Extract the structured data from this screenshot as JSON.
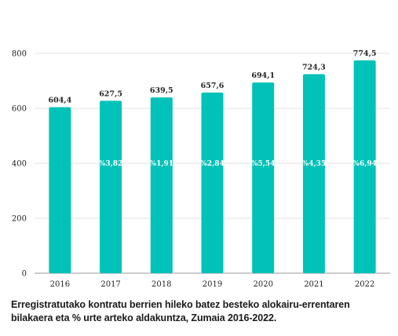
{
  "caption": "Erregistratutako kontratu berrien hileko batez besteko alokairu-errentaren bilakaera eta % urte arteko aldakuntza, Zumaia 2016-2022.",
  "colors": {
    "bar": "#00c2b8",
    "grid": "#e3e3e3",
    "axis": "#9a9a9a"
  },
  "chart_data": {
    "type": "bar",
    "title": "",
    "xlabel": "",
    "ylabel": "",
    "categories": [
      "2016",
      "2017",
      "2018",
      "2019",
      "2020",
      "2021",
      "2022"
    ],
    "values": [
      604.4,
      627.5,
      639.5,
      657.6,
      694.1,
      724.3,
      774.5
    ],
    "value_labels": [
      "604,4",
      "627,5",
      "639,5",
      "657,6",
      "694,1",
      "724,3",
      "774,5"
    ],
    "pct_labels": [
      "",
      "%3,82",
      "%1,91",
      "%2,84",
      "%5,54",
      "%4,35",
      "%6,94"
    ],
    "ylim": [
      0,
      800
    ],
    "yticks": [
      0,
      200,
      400,
      600,
      800
    ],
    "grid": true
  }
}
